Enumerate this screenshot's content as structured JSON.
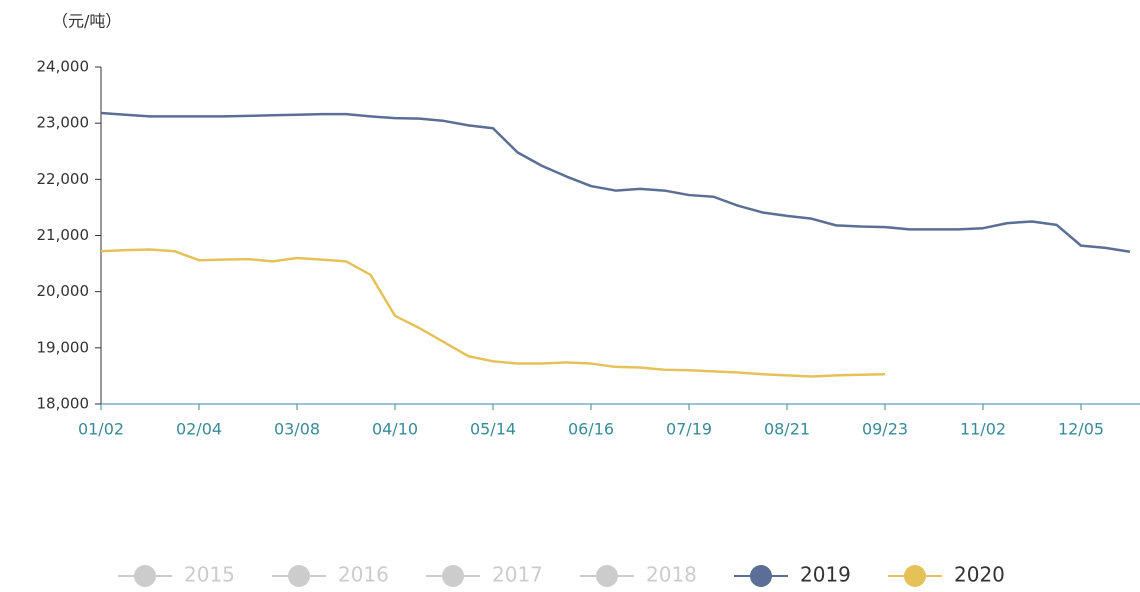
{
  "chart_data": {
    "type": "line",
    "y_axis_label": "（元/吨）",
    "categories": [
      "01/02",
      null,
      null,
      null,
      "02/04",
      null,
      null,
      null,
      "03/08",
      null,
      null,
      null,
      "04/10",
      null,
      null,
      null,
      "05/14",
      null,
      null,
      null,
      "06/16",
      null,
      null,
      null,
      "07/19",
      null,
      null,
      null,
      "08/21",
      null,
      null,
      null,
      "09/23",
      null,
      null,
      null,
      "11/02",
      null,
      null,
      null,
      "12/05",
      null,
      null
    ],
    "ylim": [
      18000,
      24000
    ],
    "yticks": [
      {
        "value": 18000,
        "label": "18,000"
      },
      {
        "value": 19000,
        "label": "19,000"
      },
      {
        "value": 20000,
        "label": "20,000"
      },
      {
        "value": 21000,
        "label": "21,000"
      },
      {
        "value": 22000,
        "label": "22,000"
      },
      {
        "value": 23000,
        "label": "23,000"
      },
      {
        "value": 24000,
        "label": "24,000"
      }
    ],
    "series": [
      {
        "name": "2015",
        "color": "#cccccc",
        "visible": false
      },
      {
        "name": "2016",
        "color": "#cccccc",
        "visible": false
      },
      {
        "name": "2017",
        "color": "#cccccc",
        "visible": false
      },
      {
        "name": "2018",
        "color": "#cccccc",
        "visible": false
      },
      {
        "name": "2019",
        "color": "#5b6e96",
        "visible": true,
        "values": [
          23180,
          23150,
          23120,
          23120,
          23120,
          23120,
          23130,
          23140,
          23150,
          23160,
          23160,
          23120,
          23090,
          23080,
          23040,
          22960,
          22910,
          22480,
          22240,
          22050,
          21880,
          21800,
          21830,
          21800,
          21720,
          21690,
          21530,
          21410,
          21350,
          21300,
          21180,
          21160,
          21150,
          21110,
          21110,
          21110,
          21130,
          21220,
          21250,
          21190,
          20820,
          20780,
          20710
        ]
      },
      {
        "name": "2020",
        "color": "#e6c15a",
        "visible": true,
        "values": [
          20720,
          20740,
          20750,
          20720,
          20560,
          20570,
          20580,
          20540,
          20600,
          20570,
          20540,
          20300,
          19570,
          19350,
          19100,
          18850,
          18760,
          18720,
          18720,
          18740,
          18720,
          18660,
          18650,
          18610,
          18600,
          18580,
          18560,
          18530,
          18510,
          18490,
          18510,
          18520,
          18530,
          null,
          null,
          null,
          null,
          null,
          null,
          null,
          null,
          null,
          null
        ]
      }
    ]
  }
}
